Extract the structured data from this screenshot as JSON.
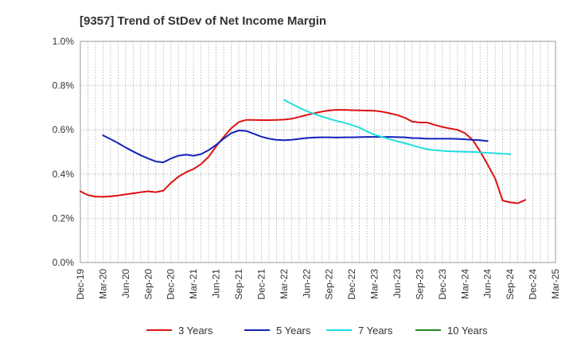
{
  "chart_data": {
    "type": "line",
    "title": "[9357]  Trend of StDev of Net Income Margin",
    "xlabel": "",
    "ylabel": "",
    "ylim": [
      0,
      1.0
    ],
    "ytick_values": [
      0,
      0.2,
      0.4,
      0.6,
      0.8,
      1.0
    ],
    "ytick_labels": [
      "0.0%",
      "0.2%",
      "0.4%",
      "0.6%",
      "0.8%",
      "1.0%"
    ],
    "x_tick_labels": [
      "Dec-19",
      "Mar-20",
      "Jun-20",
      "Sep-20",
      "Dec-20",
      "Mar-21",
      "Jun-21",
      "Sep-21",
      "Dec-21",
      "Mar-22",
      "Jun-22",
      "Sep-22",
      "Dec-22",
      "Mar-23",
      "Jun-23",
      "Sep-23",
      "Dec-23",
      "Mar-24",
      "Jun-24",
      "Sep-24",
      "Dec-24",
      "Mar-25"
    ],
    "x_months": [
      "Dec-19",
      "Jan-20",
      "Feb-20",
      "Mar-20",
      "Apr-20",
      "May-20",
      "Jun-20",
      "Jul-20",
      "Aug-20",
      "Sep-20",
      "Oct-20",
      "Nov-20",
      "Dec-20",
      "Jan-21",
      "Feb-21",
      "Mar-21",
      "Apr-21",
      "May-21",
      "Jun-21",
      "Jul-21",
      "Aug-21",
      "Sep-21",
      "Oct-21",
      "Nov-21",
      "Dec-21",
      "Jan-22",
      "Feb-22",
      "Mar-22",
      "Apr-22",
      "May-22",
      "Jun-22",
      "Jul-22",
      "Aug-22",
      "Sep-22",
      "Oct-22",
      "Nov-22",
      "Dec-22",
      "Jan-23",
      "Feb-23",
      "Mar-23",
      "Apr-23",
      "May-23",
      "Jun-23",
      "Jul-23",
      "Aug-23",
      "Sep-23",
      "Oct-23",
      "Nov-23",
      "Dec-23",
      "Jan-24",
      "Feb-24",
      "Mar-24",
      "Apr-24",
      "May-24",
      "Jun-24",
      "Jul-24",
      "Aug-24",
      "Sep-24",
      "Oct-24",
      "Nov-24",
      "Dec-24",
      "Jan-25",
      "Feb-25",
      "Mar-25"
    ],
    "grid": true,
    "legend_placement": "bottom",
    "series": [
      {
        "name": "3 Years",
        "color": "#dd1111",
        "start_month": "Dec-19",
        "values": [
          0.322,
          0.305,
          0.298,
          0.297,
          0.299,
          0.303,
          0.308,
          0.313,
          0.318,
          0.322,
          0.318,
          0.325,
          0.36,
          0.388,
          0.408,
          0.423,
          0.445,
          0.478,
          0.525,
          0.568,
          0.607,
          0.635,
          0.645,
          0.645,
          0.644,
          0.644,
          0.645,
          0.646,
          0.65,
          0.658,
          0.667,
          0.675,
          0.682,
          0.688,
          0.69,
          0.69,
          0.689,
          0.688,
          0.687,
          0.686,
          0.682,
          0.675,
          0.667,
          0.655,
          0.637,
          0.633,
          0.633,
          0.622,
          0.613,
          0.606,
          0.6,
          0.585,
          0.555,
          0.503,
          0.443,
          0.38,
          0.28,
          0.272,
          0.268,
          0.283
        ]
      },
      {
        "name": "5 Years",
        "color": "#1122bb",
        "start_month": "Mar-20",
        "values": [
          0.575,
          0.558,
          0.54,
          0.52,
          0.502,
          0.485,
          0.47,
          0.457,
          0.453,
          0.47,
          0.483,
          0.488,
          0.483,
          0.49,
          0.508,
          0.532,
          0.56,
          0.585,
          0.597,
          0.595,
          0.582,
          0.569,
          0.56,
          0.555,
          0.553,
          0.555,
          0.559,
          0.563,
          0.565,
          0.566,
          0.566,
          0.565,
          0.566,
          0.566,
          0.567,
          0.568,
          0.568,
          0.568,
          0.568,
          0.567,
          0.566,
          0.563,
          0.562,
          0.56,
          0.56,
          0.56,
          0.56,
          0.559,
          0.557,
          0.555,
          0.553,
          0.549
        ]
      },
      {
        "name": "7 Years",
        "color": "#22dddd",
        "start_month": "Mar-22",
        "values": [
          0.735,
          0.718,
          0.7,
          0.685,
          0.672,
          0.66,
          0.65,
          0.64,
          0.632,
          0.622,
          0.61,
          0.593,
          0.578,
          0.568,
          0.558,
          0.548,
          0.54,
          0.53,
          0.52,
          0.512,
          0.508,
          0.505,
          0.503,
          0.502,
          0.501,
          0.5,
          0.498,
          0.496,
          0.494,
          0.492,
          0.49
        ]
      },
      {
        "name": "10 Years",
        "color": "#228822",
        "start_month": "Mar-22",
        "values": []
      }
    ]
  }
}
